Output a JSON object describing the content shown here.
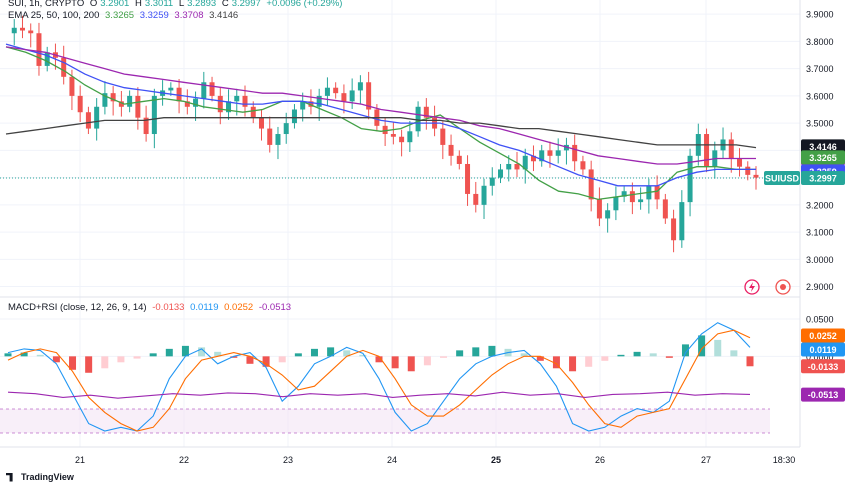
{
  "header": {
    "symbol_line": "SUI, 1h, CRYPTO",
    "ohlc": {
      "o_label": "O",
      "o": "3.2901",
      "h_label": "H",
      "h": "3.3011",
      "l_label": "L",
      "l": "3.2893",
      "c_label": "C",
      "c": "3.2997",
      "change": "+0.0096 (+0.29%)"
    },
    "ema_label": "EMA 25, 50, 100, 200",
    "ema_values": [
      "3.3265",
      "3.3259",
      "3.3708",
      "3.4146"
    ],
    "macd_label": "MACD+RSI (close, 12, 26, 9, 14)",
    "macd_values": [
      "-0.0133",
      "0.0119",
      "0.0252",
      "-0.0513"
    ]
  },
  "price_axis": [
    "3.9000",
    "3.8000",
    "3.7000",
    "3.6000",
    "3.5000",
    "3.4000",
    "3.3000",
    "3.2000",
    "3.1000",
    "3.0000",
    "2.9000"
  ],
  "macd_axis": [
    "0.0500",
    "0.0000"
  ],
  "time_axis": [
    "21",
    "22",
    "23",
    "24",
    "25",
    "26",
    "27",
    "18:30"
  ],
  "price_labels": {
    "ema200": "3.4146",
    "ema100": "3.3708",
    "ema50": "3.3259",
    "ema25": "3.3265",
    "symbol": "SUIUSD",
    "last": "3.2997"
  },
  "macd_labels": {
    "signal": "0.0252",
    "macd": "0.0119",
    "hist": "-0.0133",
    "rsi": "-0.0513"
  },
  "brand": "TradingView",
  "colors": {
    "up": "#26a69a",
    "down": "#ef5350",
    "ema25": "#43a047",
    "ema50": "#3f51f5",
    "ema100": "#9c27b0",
    "ema200": "#424242",
    "macd": "#2196f3",
    "signal": "#ff6d00",
    "rsi": "#9c27b0"
  },
  "chart_data": [
    {
      "type": "candlestick",
      "title": "SUI, 1h, CRYPTO",
      "ylim": [
        2.88,
        3.93
      ],
      "x": [
        "21",
        "22",
        "23",
        "24",
        "25",
        "26",
        "27",
        "18:30"
      ],
      "close_path": [
        3.83,
        3.85,
        3.84,
        3.83,
        3.71,
        3.76,
        3.74,
        3.67,
        3.6,
        3.54,
        3.48,
        3.56,
        3.61,
        3.58,
        3.56,
        3.6,
        3.52,
        3.46,
        3.6,
        3.62,
        3.63,
        3.58,
        3.56,
        3.59,
        3.65,
        3.6,
        3.54,
        3.58,
        3.6,
        3.56,
        3.52,
        3.48,
        3.42,
        3.46,
        3.5,
        3.55,
        3.58,
        3.56,
        3.6,
        3.63,
        3.61,
        3.58,
        3.62,
        3.65,
        3.55,
        3.49,
        3.46,
        3.45,
        3.43,
        3.47,
        3.56,
        3.52,
        3.48,
        3.42,
        3.38,
        3.35,
        3.24,
        3.2,
        3.27,
        3.3,
        3.33,
        3.35,
        3.33,
        3.38,
        3.36,
        3.4,
        3.38,
        3.4,
        3.42,
        3.36,
        3.33,
        3.22,
        3.15,
        3.18,
        3.23,
        3.25,
        3.21,
        3.22,
        3.27,
        3.22,
        3.15,
        3.07,
        3.21,
        3.38,
        3.46,
        3.34,
        3.4,
        3.44,
        3.37,
        3.34,
        3.31,
        3.3
      ],
      "series": [
        {
          "name": "EMA 25",
          "value": 3.3265,
          "path": [
            3.78,
            3.76,
            3.73,
            3.69,
            3.64,
            3.6,
            3.57,
            3.58,
            3.59,
            3.58,
            3.56,
            3.55,
            3.54,
            3.55,
            3.58,
            3.58,
            3.55,
            3.52,
            3.48,
            3.47,
            3.48,
            3.51,
            3.53,
            3.48,
            3.43,
            3.39,
            3.35,
            3.29,
            3.25,
            3.24,
            3.22,
            3.23,
            3.24,
            3.25,
            3.32,
            3.34,
            3.34,
            3.33,
            3.33
          ]
        },
        {
          "name": "EMA 50",
          "value": 3.3259,
          "path": [
            3.79,
            3.77,
            3.75,
            3.72,
            3.68,
            3.65,
            3.63,
            3.62,
            3.61,
            3.6,
            3.59,
            3.58,
            3.57,
            3.57,
            3.58,
            3.58,
            3.57,
            3.55,
            3.53,
            3.51,
            3.5,
            3.5,
            3.5,
            3.48,
            3.45,
            3.42,
            3.4,
            3.37,
            3.34,
            3.31,
            3.29,
            3.27,
            3.27,
            3.27,
            3.3,
            3.32,
            3.33,
            3.33,
            3.33
          ]
        },
        {
          "name": "EMA 100",
          "value": 3.3708,
          "path": [
            3.78,
            3.77,
            3.76,
            3.74,
            3.72,
            3.7,
            3.68,
            3.67,
            3.66,
            3.65,
            3.64,
            3.63,
            3.62,
            3.61,
            3.61,
            3.6,
            3.59,
            3.58,
            3.57,
            3.55,
            3.54,
            3.53,
            3.52,
            3.51,
            3.49,
            3.48,
            3.46,
            3.44,
            3.42,
            3.4,
            3.38,
            3.37,
            3.36,
            3.35,
            3.35,
            3.36,
            3.37,
            3.37,
            3.37
          ]
        },
        {
          "name": "EMA 200",
          "value": 3.4146,
          "path": [
            3.46,
            3.47,
            3.48,
            3.49,
            3.5,
            3.51,
            3.51,
            3.51,
            3.52,
            3.52,
            3.52,
            3.52,
            3.52,
            3.52,
            3.52,
            3.52,
            3.52,
            3.52,
            3.52,
            3.52,
            3.52,
            3.51,
            3.51,
            3.5,
            3.5,
            3.49,
            3.48,
            3.48,
            3.47,
            3.46,
            3.45,
            3.44,
            3.43,
            3.42,
            3.42,
            3.42,
            3.42,
            3.42,
            3.41
          ]
        }
      ],
      "last_price": 3.2997
    },
    {
      "type": "line",
      "title": "MACD+RSI (close, 12, 26, 9, 14)",
      "ylim": [
        -0.112,
        0.058
      ],
      "series": [
        {
          "name": "MACD",
          "value": 0.0119,
          "path": [
            0.005,
            0.01,
            0.008,
            -0.01,
            -0.05,
            -0.09,
            -0.1,
            -0.095,
            -0.1,
            -0.08,
            -0.03,
            0.0,
            0.01,
            -0.01,
            0.0,
            0.005,
            -0.015,
            -0.06,
            -0.04,
            -0.01,
            0.0,
            0.012,
            0.004,
            -0.03,
            -0.075,
            -0.1,
            -0.09,
            -0.06,
            -0.03,
            -0.01,
            0.0,
            0.005,
            0.008,
            -0.01,
            -0.04,
            -0.09,
            -0.1,
            -0.095,
            -0.08,
            -0.07,
            -0.075,
            -0.06,
            0.005,
            0.03,
            0.045,
            0.035,
            0.012
          ]
        },
        {
          "name": "Signal",
          "value": 0.0252,
          "path": [
            -0.005,
            0.005,
            0.01,
            0.005,
            -0.02,
            -0.055,
            -0.075,
            -0.09,
            -0.1,
            -0.095,
            -0.07,
            -0.03,
            -0.005,
            0.0,
            0.005,
            0.0,
            -0.01,
            -0.025,
            -0.045,
            -0.04,
            -0.02,
            0.0,
            0.008,
            0.0,
            -0.03,
            -0.065,
            -0.08,
            -0.08,
            -0.065,
            -0.045,
            -0.025,
            -0.01,
            0.0,
            0.0,
            -0.01,
            -0.035,
            -0.065,
            -0.09,
            -0.095,
            -0.08,
            -0.075,
            -0.07,
            -0.03,
            0.01,
            0.03,
            0.035,
            0.025
          ]
        },
        {
          "name": "RSI",
          "value": -0.0513,
          "path": [
            -0.048,
            -0.05,
            -0.055,
            -0.052,
            -0.056,
            -0.053,
            -0.05,
            -0.052,
            -0.049,
            -0.05,
            -0.054,
            -0.05,
            -0.052,
            -0.05,
            -0.055,
            -0.052,
            -0.05,
            -0.053,
            -0.048,
            -0.052,
            -0.05,
            -0.055,
            -0.051,
            -0.05,
            -0.048,
            -0.052,
            -0.05,
            -0.051
          ]
        },
        {
          "name": "Histogram",
          "value": -0.0133,
          "values": [
            0.004,
            0.005,
            0.002,
            -0.008,
            -0.018,
            -0.022,
            -0.016,
            -0.008,
            -0.003,
            0.004,
            0.01,
            0.014,
            0.012,
            0.006,
            -0.002,
            -0.01,
            -0.014,
            -0.008,
            0.004,
            0.01,
            0.012,
            0.008,
            0.002,
            -0.008,
            -0.016,
            -0.02,
            -0.012,
            -0.002,
            0.008,
            0.012,
            0.014,
            0.01,
            0.004,
            -0.006,
            -0.016,
            -0.02,
            -0.014,
            -0.006,
            0.002,
            0.006,
            0.004,
            -0.002,
            0.016,
            0.028,
            0.022,
            0.008,
            -0.0133
          ]
        }
      ]
    }
  ]
}
